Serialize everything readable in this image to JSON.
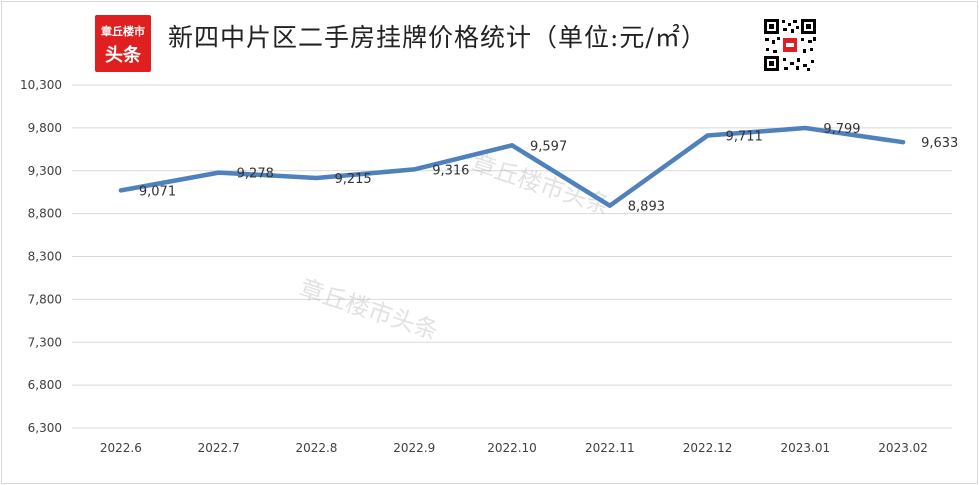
{
  "header": {
    "title": "新四中片区二手房挂牌价格统计（单位:元/㎡）",
    "logo_line1": "章丘楼市",
    "logo_line2": "头条",
    "logo_color": "#e02020"
  },
  "watermarks": [
    "章丘楼市头条",
    "章丘楼市头条"
  ],
  "chart_data": {
    "type": "line",
    "categories": [
      "2022.6",
      "2022.7",
      "2022.8",
      "2022.9",
      "2022.10",
      "2022.11",
      "2022.12",
      "2023.01",
      "2023.02"
    ],
    "series": [
      {
        "values": [
          9071,
          9278,
          9215,
          9316,
          9597,
          8893,
          9711,
          9799,
          9633
        ],
        "color": "#4f81bd"
      }
    ],
    "data_labels": [
      "9,071",
      "9,278",
      "9,215",
      "9,316",
      "9,597",
      "8,893",
      "9,711",
      "9,799",
      "9,633"
    ],
    "yticks": [
      6300,
      6800,
      7300,
      7800,
      8300,
      8800,
      9300,
      9800,
      10300
    ],
    "ytick_labels": [
      "6,300",
      "6,800",
      "7,300",
      "7,800",
      "8,300",
      "8,800",
      "9,300",
      "9,800",
      "10,300"
    ],
    "ylim": [
      6300,
      10300
    ],
    "grid": true,
    "legend": "none",
    "xlabel": "",
    "ylabel": ""
  }
}
